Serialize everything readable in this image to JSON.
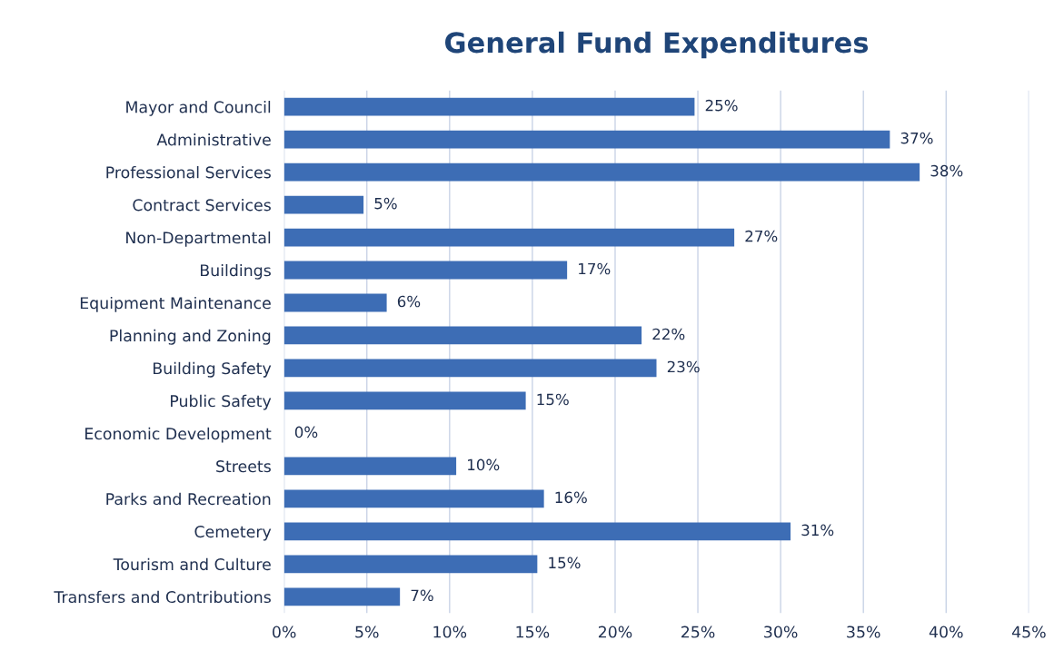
{
  "chart_data": {
    "type": "bar",
    "orientation": "horizontal",
    "title": "General Fund Expenditures",
    "categories": [
      "Mayor and Council",
      "Administrative",
      "Professional Services",
      "Contract Services",
      "Non-Departmental",
      "Buildings",
      "Equipment Maintenance",
      "Planning and Zoning",
      "Building Safety",
      "Public Safety",
      "Economic Development",
      "Streets",
      "Parks and Recreation",
      "Cemetery",
      "Tourism and Culture",
      "Transfers and Contributions"
    ],
    "values": [
      24.8,
      36.6,
      38.4,
      4.8,
      27.2,
      17.1,
      6.2,
      21.6,
      22.5,
      14.6,
      0,
      10.4,
      15.7,
      30.6,
      15.3,
      7.0
    ],
    "value_labels": [
      "25%",
      "37%",
      "38%",
      "5%",
      "27%",
      "17%",
      "6%",
      "22%",
      "23%",
      "15%",
      "0%",
      "10%",
      "16%",
      "31%",
      "15%",
      "7%"
    ],
    "color": "#3d6db5",
    "xlim": [
      0,
      45
    ],
    "xticks": [
      {
        "value": 0,
        "label": "0%"
      },
      {
        "value": 5,
        "label": "5%"
      },
      {
        "value": 10,
        "label": "10%"
      },
      {
        "value": 15,
        "label": "15%"
      },
      {
        "value": 20,
        "label": "20%"
      },
      {
        "value": 25,
        "label": "25%"
      },
      {
        "value": 30,
        "label": "30%"
      },
      {
        "value": 35,
        "label": "35%"
      },
      {
        "value": 40,
        "label": "40%"
      },
      {
        "value": 45,
        "label": "45%"
      }
    ],
    "grid": "x"
  }
}
